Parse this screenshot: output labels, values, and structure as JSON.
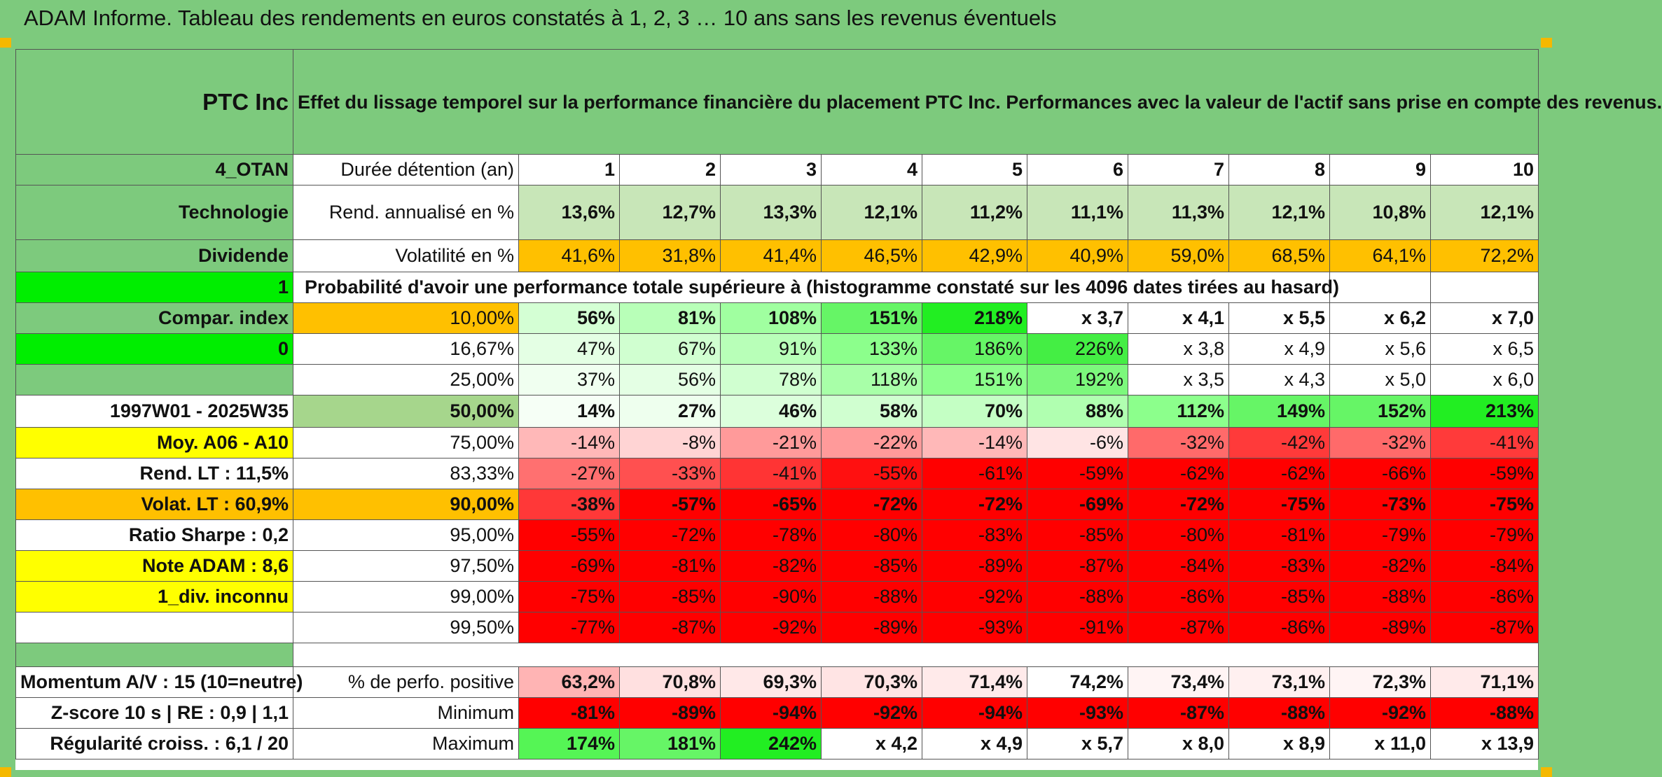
{
  "title": "ADAM Informe. Tableau des rendements en euros constatés à 1, 2, 3 … 10 ans sans les revenus éventuels",
  "left": {
    "name": "PTC Inc",
    "code": "4_OTAN",
    "sector": "Technologie",
    "type": "Dividende",
    "flag1": "1",
    "compar": "Compar. index",
    "flag0": "0",
    "period": "1997W01 - 2025W35",
    "moy": "Moy. A06 - A10",
    "rend_lt": "Rend. LT :    11,5%",
    "volat_lt": "Volat. LT :    60,9%",
    "sharpe": "Ratio Sharpe :    0,2",
    "note": "Note ADAM : 8,6",
    "div": "1_div. inconnu",
    "momentum": "Momentum A/V : 15 (10=neutre)",
    "zscore": "Z-score 10 s | RE : 0,9 | 1,1",
    "regularite": "Régularité croiss. : 6,1 / 20"
  },
  "header_text": "Effet du lissage temporel sur la performance financière du placement PTC Inc. Performances avec la valeur de l'actif sans prise en compte des revenus.",
  "duree_label": "Durée détention (an)",
  "years": [
    "1",
    "2",
    "3",
    "4",
    "5",
    "6",
    "7",
    "8",
    "9",
    "10"
  ],
  "rend_label": "Rend. annualisé en %",
  "rend": [
    "13,6%",
    "12,7%",
    "13,3%",
    "12,1%",
    "11,2%",
    "11,1%",
    "11,3%",
    "12,1%",
    "10,8%",
    "12,1%"
  ],
  "vol_label": "Volatilité en %",
  "vol": [
    "41,6%",
    "31,8%",
    "41,4%",
    "46,5%",
    "42,9%",
    "40,9%",
    "59,0%",
    "68,5%",
    "64,1%",
    "72,2%"
  ],
  "prob_text": "Probabilité d'avoir une performance totale supérieure à (histogramme constaté sur les 4096 dates tirées au hasard)",
  "prob_rows": [
    {
      "p": "10,00%",
      "v": [
        "56%",
        "81%",
        "108%",
        "151%",
        "218%",
        "x 3,7",
        "x 4,1",
        "x 5,5",
        "x 6,2",
        "x 7,0"
      ]
    },
    {
      "p": "16,67%",
      "v": [
        "47%",
        "67%",
        "91%",
        "133%",
        "186%",
        "226%",
        "x 3,8",
        "x 4,9",
        "x 5,6",
        "x 6,5"
      ]
    },
    {
      "p": "25,00%",
      "v": [
        "37%",
        "56%",
        "78%",
        "118%",
        "151%",
        "192%",
        "x 3,5",
        "x 4,3",
        "x 5,0",
        "x 6,0"
      ]
    },
    {
      "p": "50,00%",
      "v": [
        "14%",
        "27%",
        "46%",
        "58%",
        "70%",
        "88%",
        "112%",
        "149%",
        "152%",
        "213%"
      ]
    },
    {
      "p": "75,00%",
      "v": [
        "-14%",
        "-8%",
        "-21%",
        "-22%",
        "-14%",
        "-6%",
        "-32%",
        "-42%",
        "-32%",
        "-41%"
      ]
    },
    {
      "p": "83,33%",
      "v": [
        "-27%",
        "-33%",
        "-41%",
        "-55%",
        "-61%",
        "-59%",
        "-62%",
        "-62%",
        "-66%",
        "-59%"
      ]
    },
    {
      "p": "90,00%",
      "v": [
        "-38%",
        "-57%",
        "-65%",
        "-72%",
        "-72%",
        "-69%",
        "-72%",
        "-75%",
        "-73%",
        "-75%"
      ]
    },
    {
      "p": "95,00%",
      "v": [
        "-55%",
        "-72%",
        "-78%",
        "-80%",
        "-83%",
        "-85%",
        "-80%",
        "-81%",
        "-79%",
        "-79%"
      ]
    },
    {
      "p": "97,50%",
      "v": [
        "-69%",
        "-81%",
        "-82%",
        "-85%",
        "-89%",
        "-87%",
        "-84%",
        "-83%",
        "-82%",
        "-84%"
      ]
    },
    {
      "p": "99,00%",
      "v": [
        "-75%",
        "-85%",
        "-90%",
        "-88%",
        "-92%",
        "-88%",
        "-86%",
        "-85%",
        "-88%",
        "-86%"
      ]
    },
    {
      "p": "99,50%",
      "v": [
        "-77%",
        "-87%",
        "-92%",
        "-89%",
        "-93%",
        "-91%",
        "-87%",
        "-86%",
        "-89%",
        "-87%"
      ]
    }
  ],
  "pos_label": "% de perfo. positive",
  "pos": [
    "63,2%",
    "70,8%",
    "69,3%",
    "70,3%",
    "71,4%",
    "74,2%",
    "73,4%",
    "73,1%",
    "72,3%",
    "71,1%"
  ],
  "min_label": "Minimum",
  "min": [
    "-81%",
    "-89%",
    "-94%",
    "-92%",
    "-94%",
    "-93%",
    "-87%",
    "-88%",
    "-92%",
    "-88%"
  ],
  "max_label": "Maximum",
  "max": [
    "174%",
    "181%",
    "242%",
    "x 4,2",
    "x 4,9",
    "x 5,7",
    "x 8,0",
    "x 8,9",
    "x 11,0",
    "x 13,9"
  ],
  "colors": {
    "header_green": "#7dca7d",
    "yellow": "#ffff00",
    "orange": "#ffc000",
    "bright_green": "#00ee00",
    "red_text": "#e00000"
  },
  "cell_colors": {
    "rend": [
      "#c8e6b8",
      "#c8e6b8",
      "#c8e6b8",
      "#c8e6b8",
      "#c8e6b8",
      "#c8e6b8",
      "#c8e6b8",
      "#c8e6b8",
      "#c8e6b8",
      "#c8e6b8"
    ],
    "vol": [
      "#ffc000",
      "#ffc000",
      "#ffc000",
      "#ffc000",
      "#ffc000",
      "#ffc000",
      "#ffc000",
      "#ffc000",
      "#ffc000",
      "#ffc000"
    ],
    "prob": [
      [
        "#d4ffd4",
        "#b8ffb8",
        "#a0ffa0",
        "#66f566",
        "#22ee22",
        "#ffffff",
        "#ffffff",
        "#ffffff",
        "#ffffff",
        "#ffffff"
      ],
      [
        "#e4ffe4",
        "#d0ffd0",
        "#b8ffb8",
        "#8cff8c",
        "#66f566",
        "#44ee44",
        "#ffffff",
        "#ffffff",
        "#ffffff",
        "#ffffff"
      ],
      [
        "#f0fff0",
        "#e4ffe4",
        "#d0ffd0",
        "#a8ffa8",
        "#8cff8c",
        "#7cf87c",
        "#ffffff",
        "#ffffff",
        "#ffffff",
        "#ffffff"
      ],
      [
        "#f6fff6",
        "#eeffee",
        "#dcffdc",
        "#d0ffd0",
        "#c4ffc4",
        "#b0ffb0",
        "#8cff8c",
        "#66f566",
        "#66f566",
        "#22ee22"
      ],
      [
        "#ffb8b8",
        "#ffd4d4",
        "#ff9a9a",
        "#ff9a9a",
        "#ffb8b8",
        "#ffe4e4",
        "#ff6a6a",
        "#ff3a3a",
        "#ff6a6a",
        "#ff3a3a"
      ],
      [
        "#ff7070",
        "#ff5050",
        "#ff3434",
        "#ff1010",
        "#ff0000",
        "#ff0000",
        "#ff0000",
        "#ff0000",
        "#ff0000",
        "#ff0000"
      ],
      [
        "#ff3838",
        "#ff0000",
        "#ff0000",
        "#ff0000",
        "#ff0000",
        "#ff0000",
        "#ff0000",
        "#ff0000",
        "#ff0000",
        "#ff0000"
      ],
      [
        "#ff0000",
        "#ff0000",
        "#ff0000",
        "#ff0000",
        "#ff0000",
        "#ff0000",
        "#ff0000",
        "#ff0000",
        "#ff0000",
        "#ff0000"
      ],
      [
        "#ff0000",
        "#ff0000",
        "#ff0000",
        "#ff0000",
        "#ff0000",
        "#ff0000",
        "#ff0000",
        "#ff0000",
        "#ff0000",
        "#ff0000"
      ],
      [
        "#ff0000",
        "#ff0000",
        "#ff0000",
        "#ff0000",
        "#ff0000",
        "#ff0000",
        "#ff0000",
        "#ff0000",
        "#ff0000",
        "#ff0000"
      ],
      [
        "#ff0000",
        "#ff0000",
        "#ff0000",
        "#ff0000",
        "#ff0000",
        "#ff0000",
        "#ff0000",
        "#ff0000",
        "#ff0000",
        "#ff0000"
      ]
    ],
    "pos": [
      "#ffb4b4",
      "#ffe0e0",
      "#ffe8e8",
      "#ffe4e4",
      "#ffeaea",
      "#ffffff",
      "#fff4f4",
      "#fff0f0",
      "#fff4f4",
      "#ffeaea"
    ],
    "min": [
      "#ff0000",
      "#ff0000",
      "#ff0000",
      "#ff0000",
      "#ff0000",
      "#ff0000",
      "#ff0000",
      "#ff0000",
      "#ff0000",
      "#ff0000"
    ],
    "max": [
      "#55f555",
      "#66f566",
      "#22ee22",
      "#ffffff",
      "#ffffff",
      "#ffffff",
      "#ffffff",
      "#ffffff",
      "#ffffff",
      "#ffffff"
    ]
  }
}
